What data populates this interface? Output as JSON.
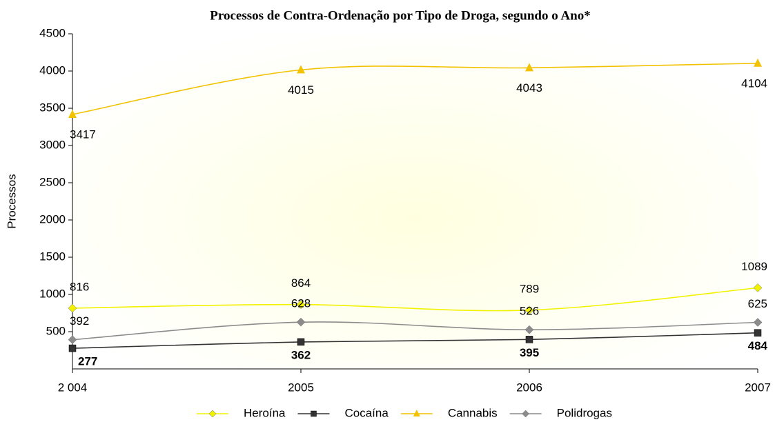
{
  "chart_data": {
    "type": "line",
    "title": "Processos de Contra-Ordenação por Tipo de Droga, segundo o Ano*",
    "y_label": "Processos",
    "categories": [
      "2 004",
      "2005",
      "2006",
      "2007"
    ],
    "series": [
      {
        "name": "Heroína",
        "color": "#f2f200",
        "marker": "diamond",
        "values": [
          816,
          864,
          789,
          1089
        ]
      },
      {
        "name": "Cocaína",
        "color": "#333333",
        "marker": "square",
        "values": [
          277,
          362,
          395,
          484
        ]
      },
      {
        "name": "Cannabis",
        "color": "#f2c200",
        "marker": "triangle",
        "values": [
          3417,
          4015,
          4043,
          4104
        ]
      },
      {
        "name": "Polidrogas",
        "color": "#8c8c8c",
        "marker": "diamond",
        "values": [
          392,
          628,
          526,
          625
        ]
      }
    ],
    "ylim": [
      0,
      4500
    ],
    "yticks": [
      500,
      1000,
      1500,
      2000,
      2500,
      3000,
      3500,
      4000,
      4500
    ],
    "legend": "bottom"
  }
}
